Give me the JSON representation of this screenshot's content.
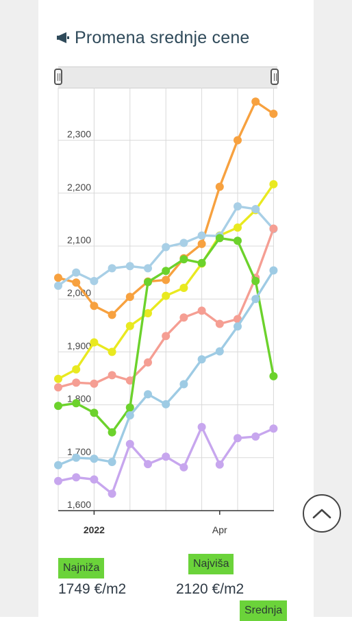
{
  "header": {
    "title": "Promena srednje cene",
    "icon": "megaphone-icon"
  },
  "chart_data": {
    "type": "line",
    "y_ticks": [
      "1,600",
      "1,700",
      "1,800",
      "1,900",
      "2,000",
      "2,100",
      "2,200",
      "2,300"
    ],
    "ylim": [
      1600,
      2380
    ],
    "x_labels": [
      {
        "label": "2022",
        "index": 2,
        "bold": true
      },
      {
        "label": "Apr",
        "index": 9,
        "bold": false
      }
    ],
    "x_count": 13,
    "grid": true,
    "series": [
      {
        "color": "#f7a13f",
        "values": [
          2040,
          2031,
          1987,
          1970,
          2004,
          2033,
          2036,
          2077,
          2104,
          2212,
          2300,
          2373,
          2350
        ]
      },
      {
        "color": "#e9e920",
        "values": [
          1849,
          1867,
          1918,
          1900,
          1949,
          1973,
          2006,
          2021,
          2067,
          2120,
          2135,
          2168,
          2217
        ]
      },
      {
        "color": "#a8cfe6",
        "values": [
          2025,
          2050,
          2034,
          2058,
          2062,
          2058,
          2098,
          2106,
          2120,
          2119,
          2175,
          2170,
          2132
        ]
      },
      {
        "color": "#f59e93",
        "values": [
          1833,
          1842,
          1840,
          1856,
          1846,
          1880,
          1930,
          1965,
          1978,
          1953,
          1962,
          2040,
          2133
        ]
      },
      {
        "color": "#6cd22c",
        "values": [
          1798,
          1803,
          1785,
          1748,
          1795,
          2032,
          2053,
          2075,
          2068,
          2115,
          2110,
          2034,
          1854
        ]
      },
      {
        "color": "#9ecbe4",
        "values": [
          1686,
          1700,
          1698,
          1692,
          1780,
          1820,
          1801,
          1839,
          1886,
          1901,
          1948,
          2000,
          2054
        ]
      },
      {
        "color": "#c7a6ee",
        "values": [
          1656,
          1663,
          1659,
          1632,
          1726,
          1688,
          1702,
          1682,
          1758,
          1687,
          1737,
          1740,
          1755
        ]
      }
    ]
  },
  "stats": {
    "min_label": "Najniža",
    "min_value": "1749 €/m2",
    "max_label": "Najviša",
    "max_value": "2120 €/m2",
    "avg_label": "Srednja"
  }
}
